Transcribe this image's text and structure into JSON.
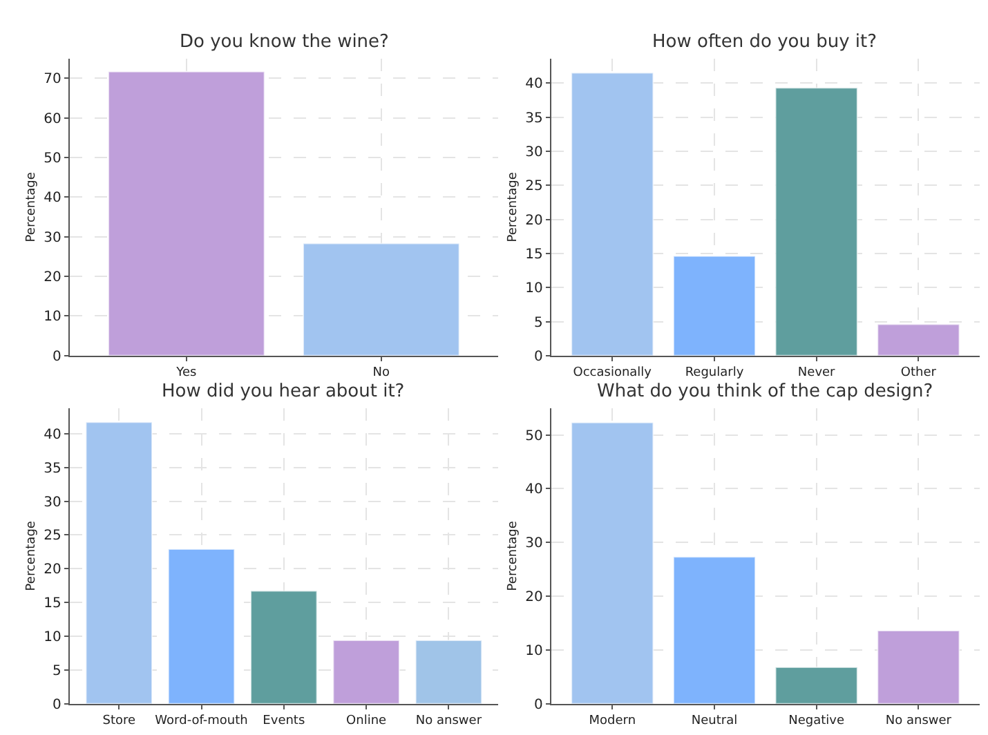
{
  "chart_data": [
    {
      "type": "bar",
      "title": "Do you know the wine?",
      "ylabel": "Percentage",
      "categories": [
        "Yes",
        "No"
      ],
      "values": [
        71.7,
        28.3
      ],
      "colors": [
        "#bf9fda",
        "#a1c4f0"
      ],
      "ylim": [
        0,
        75
      ],
      "yticks": [
        0,
        10,
        20,
        30,
        40,
        50,
        60,
        70
      ],
      "grid": true
    },
    {
      "type": "bar",
      "title": "How often do you buy it?",
      "ylabel": "Percentage",
      "categories": [
        "Occasionally",
        "Regularly",
        "Never",
        "Other"
      ],
      "values": [
        41.5,
        14.6,
        39.3,
        4.6
      ],
      "colors": [
        "#a1c4f0",
        "#7eb3fd",
        "#5f9e9e",
        "#bf9fda"
      ],
      "ylim": [
        0,
        43.6
      ],
      "yticks": [
        0,
        5,
        10,
        15,
        20,
        25,
        30,
        35,
        40
      ],
      "grid": true
    },
    {
      "type": "bar",
      "title": "How did you hear about it?",
      "ylabel": "Percentage",
      "categories": [
        "Store",
        "Word-of-mouth",
        "Events",
        "Online",
        "No answer"
      ],
      "values": [
        41.7,
        22.9,
        16.7,
        9.4,
        9.4
      ],
      "colors": [
        "#a1c4f0",
        "#7eb3fd",
        "#5f9e9e",
        "#bf9fda",
        "#a0c4e8"
      ],
      "ylim": [
        0,
        43.8
      ],
      "yticks": [
        0,
        5,
        10,
        15,
        20,
        25,
        30,
        35,
        40
      ],
      "grid": true
    },
    {
      "type": "bar",
      "title": "What do you think of the cap design?",
      "ylabel": "Percentage",
      "categories": [
        "Modern",
        "Neutral",
        "Negative",
        "No answer"
      ],
      "values": [
        52.3,
        27.3,
        6.8,
        13.6
      ],
      "colors": [
        "#a1c4f0",
        "#7eb3fd",
        "#5f9e9e",
        "#bf9fda"
      ],
      "ylim": [
        0,
        55
      ],
      "yticks": [
        0,
        10,
        20,
        30,
        40,
        50
      ],
      "grid": true
    }
  ]
}
